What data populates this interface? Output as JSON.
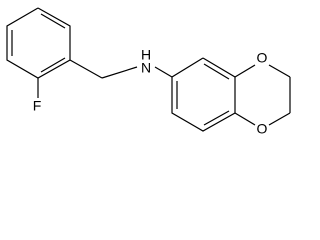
{
  "atoms": [
    {
      "label": "F"
    },
    {
      "label": "H"
    },
    {
      "label": "N"
    },
    {
      "label": "O"
    },
    {
      "label": "O"
    }
  ]
}
